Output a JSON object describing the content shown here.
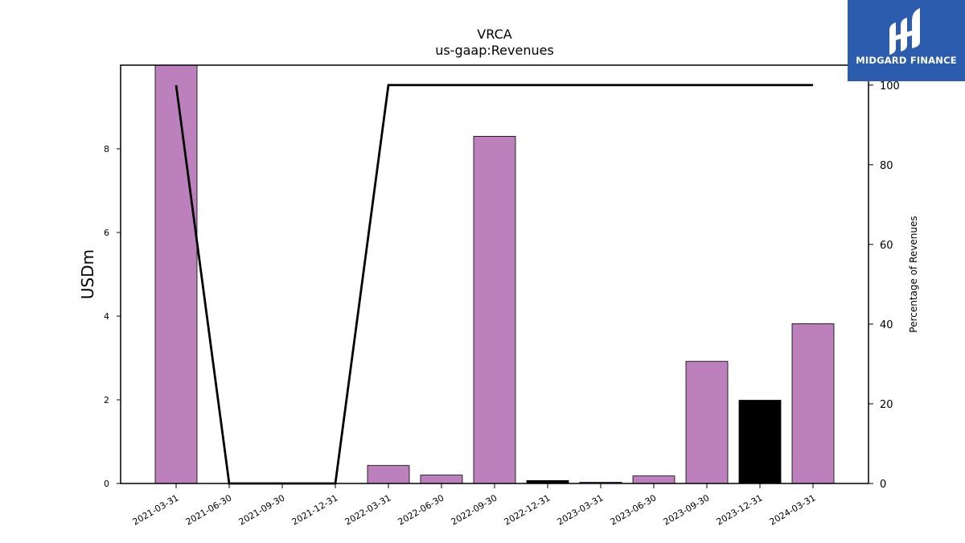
{
  "chart_data": {
    "type": "bar",
    "title": "VRCA",
    "subtitle": "us-gaap:Revenues",
    "ylabel": "USDm",
    "y2label": "Percentage of Revenues",
    "categories": [
      "2021-03-31",
      "2021-06-30",
      "2021-09-30",
      "2021-12-31",
      "2022-03-31",
      "2022-06-30",
      "2022-09-30",
      "2022-12-31",
      "2023-03-31",
      "2023-06-30",
      "2023-09-30",
      "2023-12-31",
      "2024-03-31"
    ],
    "values": [
      10.0,
      0,
      0,
      0,
      0.43,
      0.2,
      8.3,
      0.07,
      0.03,
      0.18,
      2.92,
      1.99,
      3.82
    ],
    "bar_colors": [
      "#bc80bd",
      "#bc80bd",
      "#bc80bd",
      "#bc80bd",
      "#bc80bd",
      "#bc80bd",
      "#bc80bd",
      "#000000",
      "#bc80bd",
      "#bc80bd",
      "#bc80bd",
      "#000000",
      "#bc80bd"
    ],
    "line_series": {
      "values": [
        100,
        0,
        0,
        0,
        100,
        100,
        100,
        100,
        100,
        100,
        100,
        100,
        100
      ],
      "color": "#000000"
    },
    "ylim": [
      0,
      10
    ],
    "y2lim": [
      0,
      105
    ],
    "yticks": [
      "0",
      "2",
      "4",
      "6",
      "8"
    ],
    "y2ticks": [
      "0",
      "20",
      "40",
      "60",
      "80",
      "100"
    ],
    "grid": false
  },
  "logo": {
    "text": "MIDGARD FINANCE",
    "color": "#2b5cae"
  }
}
